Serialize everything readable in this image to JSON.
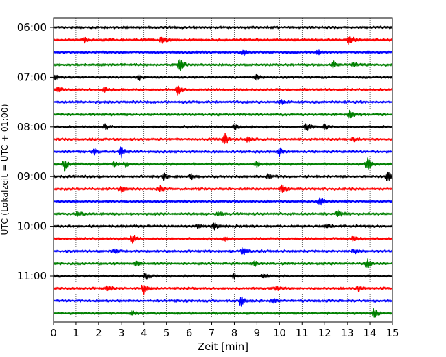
{
  "chart_data": {
    "type": "line",
    "title": "",
    "xlabel": "Zeit  [min]",
    "ylabel": "UTC (Lokalzeit = UTC + 01:00)",
    "xlim": [
      0,
      15
    ],
    "x_ticks": [
      0,
      1,
      2,
      3,
      4,
      5,
      6,
      7,
      8,
      9,
      10,
      11,
      12,
      13,
      14,
      15
    ],
    "y_ticks": [
      "06:00",
      "07:00",
      "08:00",
      "09:00",
      "10:00",
      "11:00"
    ],
    "grid": "vertical dotted",
    "colors": [
      "#000000",
      "#ff0000",
      "#0000ff",
      "#008000"
    ],
    "rows": [
      {
        "time": "06:00",
        "color": "#000000",
        "events": []
      },
      {
        "time": "06:15",
        "color": "#ff0000",
        "events": [
          [
            1.4,
            0.4
          ],
          [
            4.8,
            0.6
          ],
          [
            13.1,
            0.9
          ]
        ]
      },
      {
        "time": "06:30",
        "color": "#0000ff",
        "events": [
          [
            8.4,
            0.5
          ],
          [
            11.7,
            0.4
          ]
        ]
      },
      {
        "time": "06:45",
        "color": "#008000",
        "events": [
          [
            5.6,
            0.9
          ],
          [
            12.4,
            0.5
          ],
          [
            13.3,
            0.4
          ]
        ]
      },
      {
        "time": "07:00",
        "color": "#000000",
        "events": [
          [
            0.1,
            0.4
          ],
          [
            3.8,
            0.4
          ],
          [
            9.0,
            0.3
          ]
        ]
      },
      {
        "time": "07:15",
        "color": "#ff0000",
        "events": [
          [
            0.2,
            0.5
          ],
          [
            2.3,
            0.4
          ],
          [
            5.5,
            0.9
          ]
        ]
      },
      {
        "time": "07:30",
        "color": "#0000ff",
        "events": [
          [
            10.1,
            0.3
          ]
        ]
      },
      {
        "time": "07:45",
        "color": "#008000",
        "events": [
          [
            13.1,
            0.8
          ]
        ]
      },
      {
        "time": "08:00",
        "color": "#000000",
        "events": [
          [
            2.3,
            0.5
          ],
          [
            8.0,
            0.5
          ],
          [
            11.2,
            0.8
          ],
          [
            12.0,
            0.4
          ]
        ]
      },
      {
        "time": "08:15",
        "color": "#ff0000",
        "events": [
          [
            7.6,
            1.0
          ],
          [
            8.6,
            0.5
          ],
          [
            13.3,
            0.4
          ]
        ]
      },
      {
        "time": "08:30",
        "color": "#0000ff",
        "events": [
          [
            1.8,
            0.5
          ],
          [
            3.0,
            0.9
          ],
          [
            10.0,
            0.6
          ]
        ]
      },
      {
        "time": "08:45",
        "color": "#008000",
        "events": [
          [
            0.5,
            0.9
          ],
          [
            2.7,
            0.4
          ],
          [
            3.2,
            0.4
          ],
          [
            9.0,
            0.4
          ],
          [
            13.9,
            1.0
          ]
        ]
      },
      {
        "time": "09:00",
        "color": "#000000",
        "events": [
          [
            4.9,
            0.5
          ],
          [
            6.1,
            0.4
          ],
          [
            9.5,
            0.4
          ],
          [
            14.8,
            1.0
          ]
        ]
      },
      {
        "time": "09:15",
        "color": "#ff0000",
        "events": [
          [
            3.0,
            0.5
          ],
          [
            4.7,
            0.5
          ],
          [
            10.1,
            0.8
          ]
        ]
      },
      {
        "time": "09:30",
        "color": "#0000ff",
        "events": [
          [
            11.8,
            0.8
          ]
        ]
      },
      {
        "time": "09:45",
        "color": "#008000",
        "events": [
          [
            1.1,
            0.4
          ],
          [
            7.3,
            0.4
          ],
          [
            12.6,
            0.6
          ]
        ]
      },
      {
        "time": "10:00",
        "color": "#000000",
        "events": [
          [
            6.4,
            0.3
          ],
          [
            7.1,
            0.6
          ],
          [
            12.1,
            0.4
          ]
        ]
      },
      {
        "time": "10:15",
        "color": "#ff0000",
        "events": [
          [
            3.5,
            0.8
          ],
          [
            7.6,
            0.4
          ],
          [
            13.3,
            0.4
          ]
        ]
      },
      {
        "time": "10:30",
        "color": "#0000ff",
        "events": [
          [
            2.7,
            0.5
          ],
          [
            8.4,
            0.8
          ],
          [
            13.3,
            0.4
          ]
        ]
      },
      {
        "time": "10:45",
        "color": "#008000",
        "events": [
          [
            3.7,
            0.5
          ],
          [
            8.9,
            0.4
          ],
          [
            13.9,
            0.9
          ]
        ]
      },
      {
        "time": "11:00",
        "color": "#000000",
        "events": [
          [
            4.1,
            0.5
          ],
          [
            8.0,
            0.3
          ],
          [
            9.3,
            0.4
          ]
        ]
      },
      {
        "time": "11:15",
        "color": "#ff0000",
        "events": [
          [
            2.4,
            0.5
          ],
          [
            4.0,
            0.8
          ],
          [
            9.9,
            0.4
          ],
          [
            13.5,
            0.4
          ]
        ]
      },
      {
        "time": "11:30",
        "color": "#0000ff",
        "events": [
          [
            8.3,
            0.8
          ],
          [
            9.7,
            0.5
          ]
        ]
      },
      {
        "time": "11:45",
        "color": "#008000",
        "events": [
          [
            3.5,
            0.4
          ],
          [
            14.2,
            0.8
          ]
        ]
      }
    ]
  }
}
